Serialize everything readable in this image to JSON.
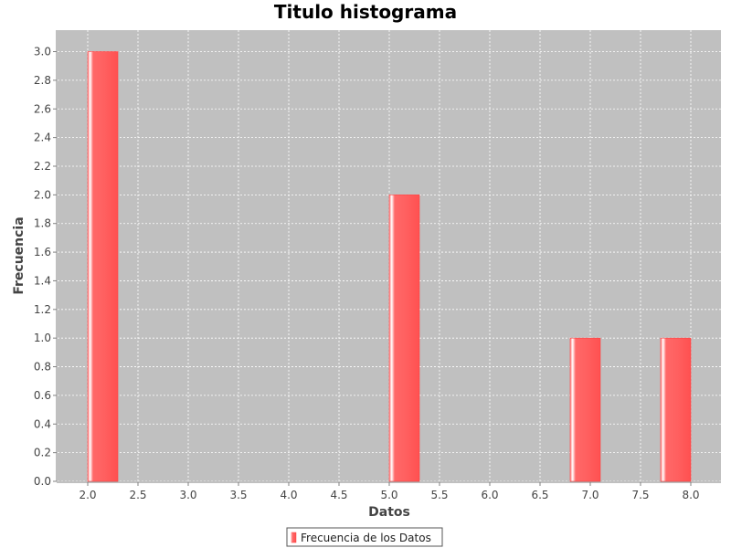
{
  "chart_data": {
    "type": "bar",
    "title": "Titulo histograma",
    "xlabel": "Datos",
    "ylabel": "Frecuencia",
    "xlim": [
      1.7,
      8.3
    ],
    "ylim": [
      0.0,
      3.15
    ],
    "x_ticks": [
      "2.0",
      "2.5",
      "3.0",
      "3.5",
      "4.0",
      "4.5",
      "5.0",
      "5.5",
      "6.0",
      "6.5",
      "7.0",
      "7.5",
      "8.0"
    ],
    "y_ticks": [
      "0.0",
      "0.2",
      "0.4",
      "0.6",
      "0.8",
      "1.0",
      "1.2",
      "1.4",
      "1.6",
      "1.8",
      "2.0",
      "2.2",
      "2.4",
      "2.6",
      "2.8",
      "3.0"
    ],
    "grid": true,
    "legend_position": "bottom-center",
    "series": [
      {
        "name": "Frecuencia de los Datos",
        "color": "#ff6060",
        "bins": [
          {
            "start": 2.0,
            "end": 2.3,
            "value": 3
          },
          {
            "start": 5.0,
            "end": 5.3,
            "value": 2
          },
          {
            "start": 6.8,
            "end": 7.1,
            "value": 1
          },
          {
            "start": 7.7,
            "end": 8.0,
            "value": 1
          }
        ]
      }
    ]
  }
}
